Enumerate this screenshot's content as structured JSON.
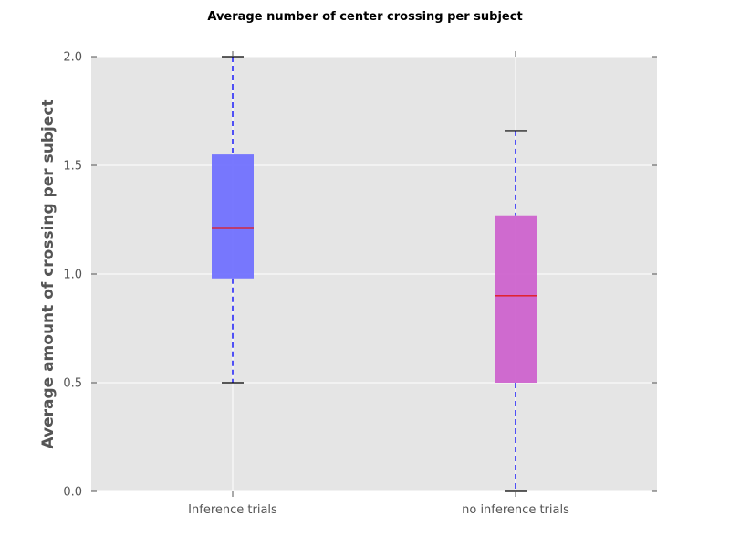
{
  "chart_data": {
    "type": "boxplot",
    "title": "Average number of center crossing per subject",
    "xlabel": "",
    "ylabel": "Average amount of crossing per subject",
    "ylim": [
      0,
      2.0
    ],
    "yticks": [
      0.0,
      0.5,
      1.0,
      1.5,
      2.0
    ],
    "ytick_labels": [
      "0.0",
      "0.5",
      "1.0",
      "1.5",
      "2.0"
    ],
    "grid": true,
    "categories": [
      "Inference trials",
      "no inference trials"
    ],
    "series": [
      {
        "whisker_low": 0.5,
        "q1": 0.98,
        "median": 1.21,
        "q3": 1.55,
        "whisker_high": 2.0,
        "color": "#6a6aff"
      },
      {
        "whisker_low": 0.0,
        "q1": 0.5,
        "median": 0.9,
        "q3": 1.27,
        "whisker_high": 1.66,
        "color": "#cc5ccc"
      }
    ],
    "colors": {
      "plot_background": "#e5e5e5",
      "grid": "#ffffff",
      "median": "#e31a1c",
      "whisker": "#0000ff",
      "cap": "#000000",
      "axis_text": "#555555"
    }
  }
}
